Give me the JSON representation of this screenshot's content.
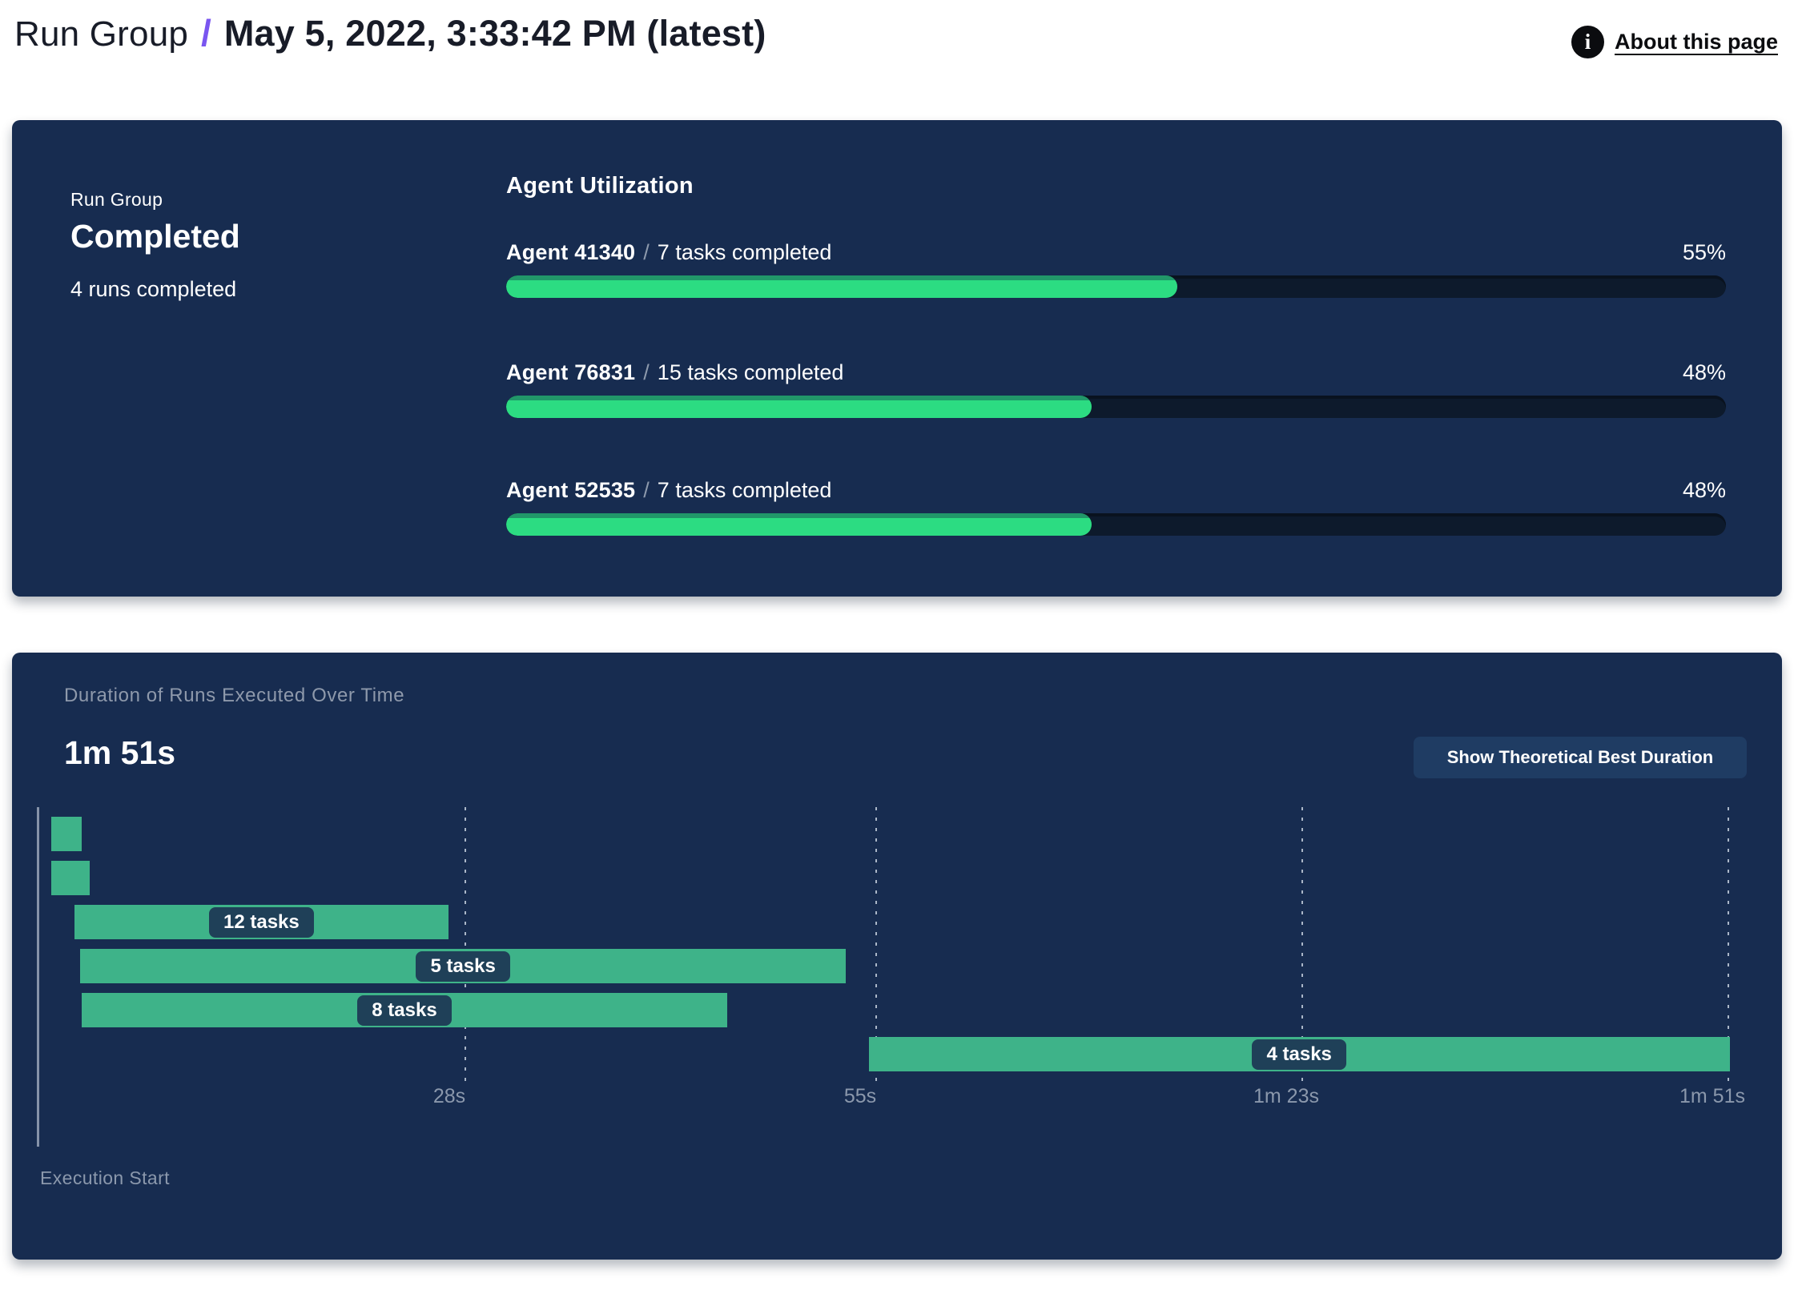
{
  "header": {
    "breadcrumb": "Run Group",
    "separator": "/",
    "title": "May 5, 2022, 3:33:42 PM (latest)",
    "about_link": "About this page",
    "info_glyph": "i"
  },
  "run_group_panel": {
    "label": "Run Group",
    "status": "Completed",
    "runs_completed": "4 runs completed",
    "agent_utilization": {
      "heading": "Agent Utilization",
      "separator": "/",
      "agents": [
        {
          "name": "Agent 41340",
          "tasks": "7 tasks completed",
          "percent": 55,
          "percent_label": "55%"
        },
        {
          "name": "Agent 76831",
          "tasks": "15 tasks completed",
          "percent": 48,
          "percent_label": "48%"
        },
        {
          "name": "Agent 52535",
          "tasks": "7 tasks completed",
          "percent": 48,
          "percent_label": "48%"
        }
      ]
    }
  },
  "duration_panel": {
    "title": "Duration of Runs Executed Over Time",
    "total_duration": "1m 51s",
    "button_label": "Show Theoretical Best Duration",
    "execution_start_label": "Execution Start"
  },
  "chart_data": {
    "type": "gantt",
    "title": "Duration of Runs Executed Over Time",
    "total_duration": "1m 51s",
    "x_unit": "seconds",
    "x_max": 111,
    "grid": "dashed-vertical",
    "x_ticks": [
      {
        "label": "28s",
        "seconds": 28
      },
      {
        "label": "55s",
        "seconds": 55
      },
      {
        "label": "1m 23s",
        "seconds": 83
      },
      {
        "label": "1m 51s",
        "seconds": 111
      }
    ],
    "bars": [
      {
        "start_s": 0.8,
        "end_s": 2.8,
        "label": ""
      },
      {
        "start_s": 0.8,
        "end_s": 3.3,
        "label": ""
      },
      {
        "start_s": 2.3,
        "end_s": 26.9,
        "label": "12 tasks"
      },
      {
        "start_s": 2.7,
        "end_s": 53.0,
        "label": "5 tasks"
      },
      {
        "start_s": 2.8,
        "end_s": 45.2,
        "label": "8 tasks"
      },
      {
        "start_s": 54.5,
        "end_s": 111.1,
        "label": "4 tasks"
      }
    ],
    "axis_label": "Execution Start"
  },
  "colors": {
    "panel_bg": "#172c50",
    "progress_fill": "#2cdc82",
    "progress_fill_top": "#219769",
    "progress_track": "#0d1a2c",
    "gantt_bar": "#3eb389",
    "pill_bg": "#1f4058",
    "accent_purple": "#7a56f0",
    "button_bg": "#1f3c63",
    "muted_text": "#8b98ac"
  }
}
